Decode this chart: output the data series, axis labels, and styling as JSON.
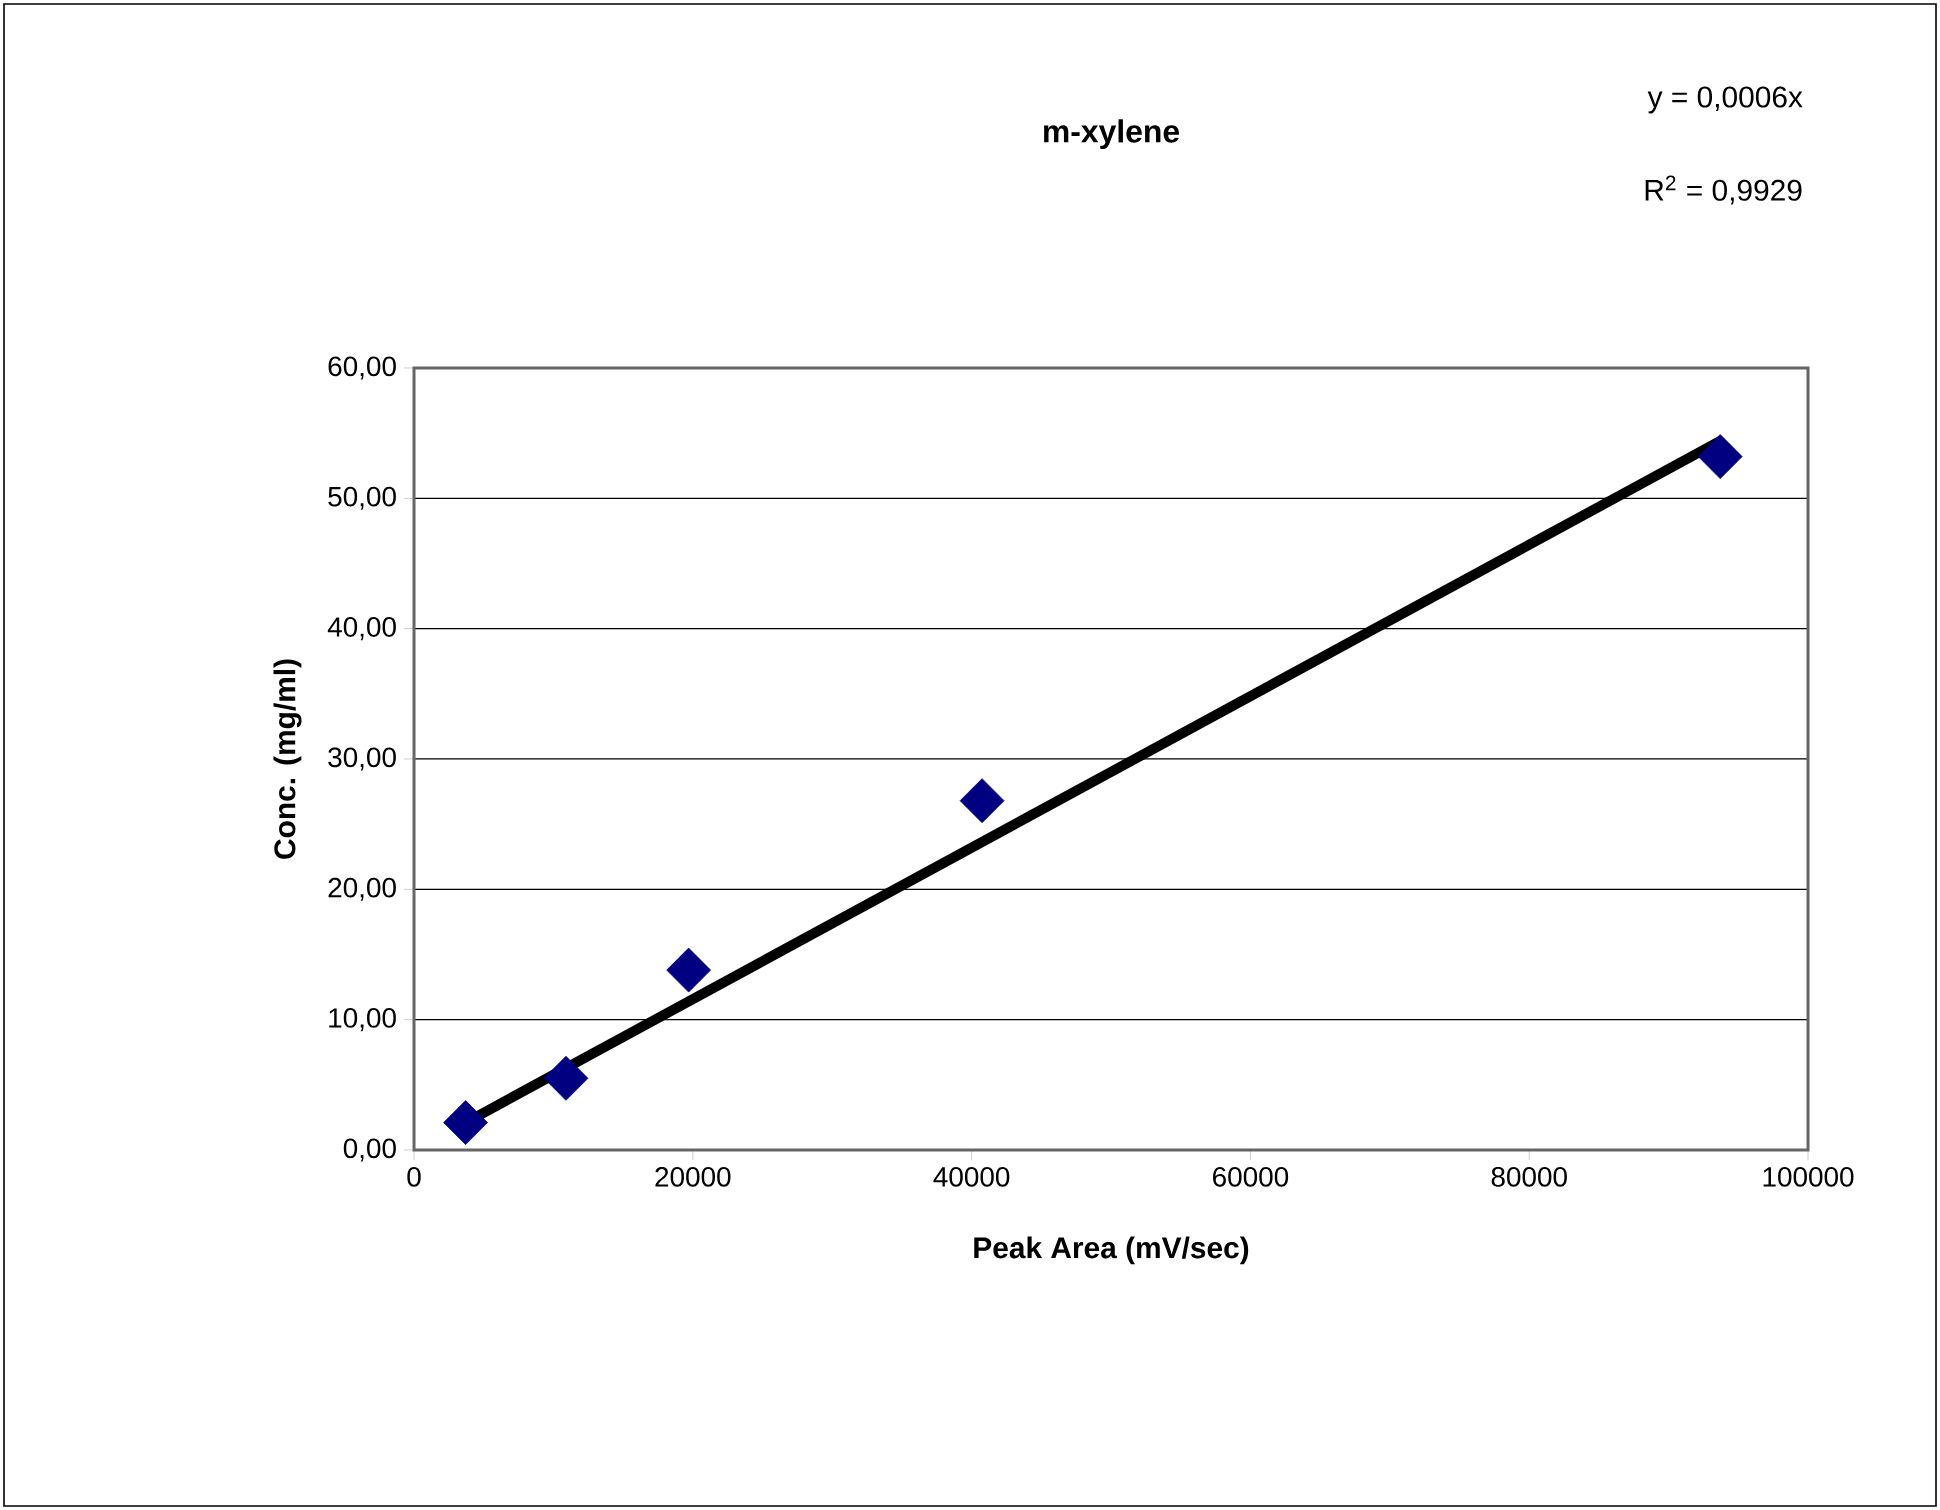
{
  "chart_data": {
    "type": "scatter",
    "title": "m-xylene",
    "xlabel": "Peak Area (mV/sec)",
    "ylabel": "Conc. (mg/ml)",
    "annotations": [
      "y = 0,0006x",
      "R$^{2}$ = 0,9929"
    ],
    "series": [
      {
        "color": "#000080",
        "marker": "diamond",
        "x": [
          3700,
          10900,
          19700,
          40750,
          93700
        ],
        "values": [
          2.1,
          5.5,
          13.8,
          26.8,
          53.2
        ]
      },
      {
        "type": "line",
        "color": "#000000",
        "marker": "none",
        "x": [
          3700,
          93700
        ],
        "values": [
          2.1,
          54.4
        ]
      }
    ],
    "xlim": [
      0,
      100000
    ],
    "xticks": [
      0,
      20000,
      40000,
      60000,
      80000,
      100000
    ],
    "ylim": [
      0,
      60
    ],
    "yticks": [
      {
        "value": 0,
        "label": "0,00"
      },
      {
        "value": 10,
        "label": "10,00"
      },
      {
        "value": 20,
        "label": "20,00"
      },
      {
        "value": 30,
        "label": "30,00"
      },
      {
        "value": 40,
        "label": "40,00"
      },
      {
        "value": 50,
        "label": "50,00"
      },
      {
        "value": 60,
        "label": "60,00"
      }
    ],
    "grid": "y"
  }
}
